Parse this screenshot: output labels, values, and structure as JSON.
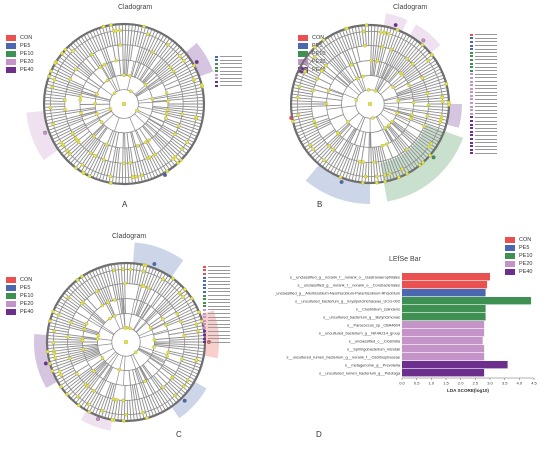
{
  "colors": {
    "CON": "#e8514f",
    "PE5": "#4a67b0",
    "PE10": "#3e9153",
    "PE20": "#c493c8",
    "PE40": "#6d2f8e",
    "tree": "#8e8e8e",
    "node": "#e6e34a"
  },
  "panels": {
    "A": {
      "title": "Cladogram",
      "letter": "A",
      "legend": [
        "CON",
        "PE5",
        "PE10",
        "PE20",
        "PE40"
      ]
    },
    "B": {
      "title": "Cladogram",
      "letter": "B",
      "legend": [
        "CON",
        "PE5",
        "PE10",
        "PE20",
        "PE40"
      ]
    },
    "C": {
      "title": "Cladogram",
      "letter": "C",
      "legend": [
        "CON",
        "PE5",
        "PE10",
        "PE20",
        "PE40"
      ]
    },
    "D": {
      "letter": "D",
      "legend": [
        "CON",
        "PE5",
        "PE10",
        "PE20",
        "PE40"
      ]
    }
  },
  "chart_data": {
    "type": "bar",
    "title": "LEfSe Bar",
    "xlabel": "LDA SCORE(log10)",
    "ylabel": "",
    "xlim": [
      0,
      4.5
    ],
    "ticks": [
      "0.0",
      "0.5",
      "1.0",
      "1.5",
      "2.0",
      "2.5",
      "3.0",
      "3.5",
      "4.0",
      "4.5"
    ],
    "categories": [
      "s__unclassified_g__norank_f__norank_o__Gastranaerophilales",
      "s__unclassified_g__norank_f__norank_o__Corobacteriales",
      "s__unclassified_g__Allorhizobium-Neorhizobium-Pararhizobium-Rhizobium",
      "s__uncultured_bacterium_g__Erysipelotrichaceae_UCG-002",
      "s__Clostridium_sciindens",
      "s__uncultured_bacterium_g__Butyricimonas",
      "s__Paracoccus_sp._CBA4604",
      "s__uncultured_bacterium_g__NK4A214_group",
      "s__unclassified_c__Clostridia",
      "s__Sphingobacterium_mizutaii",
      "s__uncultured_rumen_bacterium_g__norank_f__Oscillospiraceae",
      "s__metagenome_g__Prevotella",
      "s__uncultured_rumen_bacterium_g__Pelotaga"
    ],
    "values": [
      3.0,
      2.9,
      2.85,
      4.4,
      2.85,
      2.85,
      2.8,
      2.8,
      2.75,
      2.8,
      2.8,
      3.6,
      2.8
    ],
    "groups": [
      "CON",
      "CON",
      "PE5",
      "PE10",
      "PE10",
      "PE10",
      "PE20",
      "PE20",
      "PE20",
      "PE20",
      "PE20",
      "PE40",
      "PE40"
    ]
  }
}
